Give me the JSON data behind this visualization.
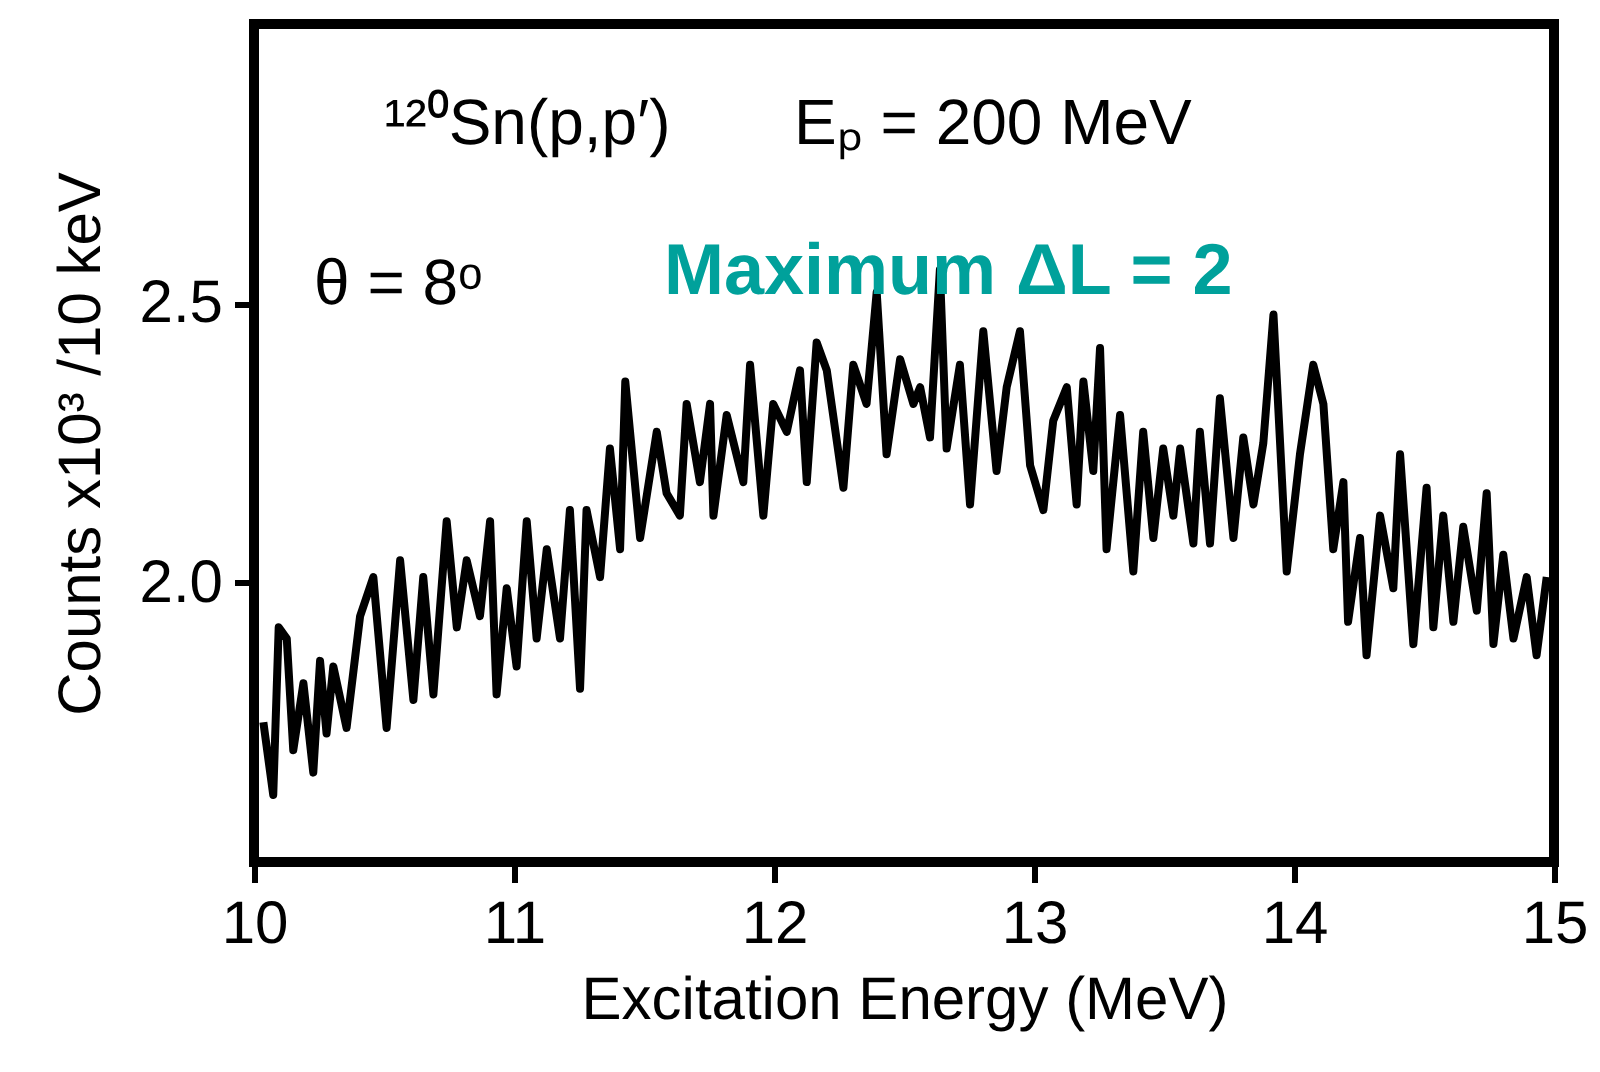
{
  "chart_data": {
    "type": "line",
    "xlabel": "Excitation Energy (MeV)",
    "ylabel": "Counts x10³ /10 keV",
    "annotations": [
      "¹²⁰Sn(p,p′)",
      "Eₚ = 200 MeV",
      "θ = 8ᵒ",
      "Maximum ΔL = 2"
    ],
    "xlim": [
      10,
      15
    ],
    "xticks": [
      10,
      11,
      12,
      13,
      14,
      15
    ],
    "ylim": [
      1.5,
      3.0
    ],
    "yticks": [
      {
        "value": 2,
        "label": "2.0"
      },
      {
        "value": 2.5,
        "label": "2.5"
      }
    ],
    "grid": false,
    "marker": "none",
    "line_style": "solid",
    "series": [
      {
        "color": "#000000",
        "x": [
          10.036,
          10.074,
          10.095,
          10.126,
          10.151,
          10.19,
          10.228,
          10.254,
          10.279,
          10.305,
          10.356,
          10.408,
          10.459,
          10.51,
          10.562,
          10.613,
          10.651,
          10.69,
          10.741,
          10.78,
          10.818,
          10.869,
          10.908,
          10.933,
          10.972,
          11.01,
          11.049,
          11.087,
          11.126,
          11.177,
          11.215,
          11.254,
          11.279,
          11.331,
          11.369,
          11.408,
          11.428,
          11.485,
          11.549,
          11.587,
          11.638,
          11.664,
          11.715,
          11.754,
          11.767,
          11.818,
          11.882,
          11.908,
          11.959,
          11.997,
          12.049,
          12.1,
          12.126,
          12.164,
          12.203,
          12.267,
          12.305,
          12.356,
          12.395,
          12.433,
          12.485,
          12.536,
          12.562,
          12.6,
          12.638,
          12.664,
          12.715,
          12.754,
          12.805,
          12.856,
          12.895,
          12.946,
          12.985,
          13.036,
          13.074,
          13.126,
          13.164,
          13.19,
          13.228,
          13.254,
          13.279,
          13.331,
          13.382,
          13.42,
          13.459,
          13.497,
          13.536,
          13.562,
          13.613,
          13.638,
          13.677,
          13.715,
          13.767,
          13.805,
          13.844,
          13.882,
          13.921,
          13.972,
          14.023,
          14.074,
          14.113,
          14.151,
          14.19,
          14.208,
          14.254,
          14.279,
          14.331,
          14.382,
          14.408,
          14.459,
          14.51,
          14.536,
          14.574,
          14.613,
          14.651,
          14.703,
          14.741,
          14.767,
          14.805,
          14.844,
          14.895,
          14.933,
          14.972
        ],
        "values": [
          1.75,
          1.62,
          1.92,
          1.9,
          1.7,
          1.82,
          1.66,
          1.86,
          1.73,
          1.85,
          1.74,
          1.94,
          2.01,
          1.74,
          2.04,
          1.79,
          2.01,
          1.8,
          2.11,
          1.92,
          2.04,
          1.94,
          2.11,
          1.8,
          1.99,
          1.85,
          2.11,
          1.9,
          2.06,
          1.9,
          2.13,
          1.81,
          2.13,
          2.01,
          2.24,
          2.06,
          2.36,
          2.08,
          2.27,
          2.16,
          2.12,
          2.32,
          2.18,
          2.32,
          2.12,
          2.3,
          2.18,
          2.39,
          2.12,
          2.32,
          2.27,
          2.38,
          2.18,
          2.43,
          2.38,
          2.17,
          2.39,
          2.32,
          2.52,
          2.23,
          2.4,
          2.32,
          2.35,
          2.26,
          2.56,
          2.24,
          2.39,
          2.14,
          2.45,
          2.2,
          2.35,
          2.45,
          2.21,
          2.13,
          2.29,
          2.35,
          2.14,
          2.36,
          2.2,
          2.42,
          2.06,
          2.3,
          2.02,
          2.27,
          2.08,
          2.24,
          2.12,
          2.24,
          2.07,
          2.27,
          2.07,
          2.33,
          2.08,
          2.26,
          2.14,
          2.25,
          2.48,
          2.02,
          2.23,
          2.39,
          2.32,
          2.06,
          2.18,
          1.93,
          2.08,
          1.87,
          2.12,
          1.99,
          2.23,
          1.89,
          2.17,
          1.92,
          2.12,
          1.93,
          2.1,
          1.95,
          2.16,
          1.89,
          2.05,
          1.9,
          2.01,
          1.87,
          2.01
        ]
      }
    ]
  }
}
